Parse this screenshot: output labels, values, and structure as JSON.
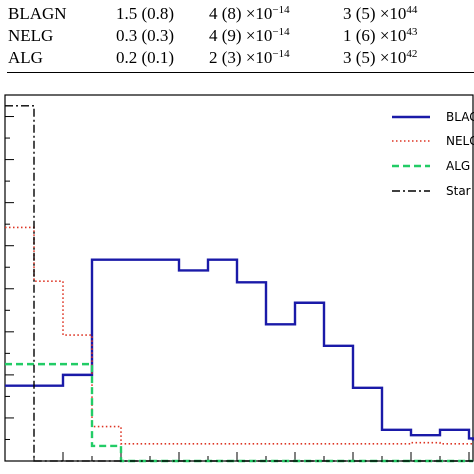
{
  "table": {
    "rows": [
      {
        "name": "BLAGN",
        "col1": "1.5 (0.8)",
        "col2_base": "4 (8) ×10",
        "col2_exp": "−14",
        "col3_base": "3 (5) ×10",
        "col3_exp": "44"
      },
      {
        "name": "NELG",
        "col1": "0.3 (0.3)",
        "col2_base": "4 (9) ×10",
        "col2_exp": "−14",
        "col3_base": "1 (6) ×10",
        "col3_exp": "43"
      },
      {
        "name": "ALG",
        "col1": "0.2 (0.1)",
        "col2_base": "2 (3) ×10",
        "col2_exp": "−14",
        "col3_base": "3 (5) ×10",
        "col3_exp": "42"
      }
    ]
  },
  "chart_data": {
    "type": "step-histogram",
    "ylim": [
      0,
      34
    ],
    "bin_edges": [
      0,
      1,
      2,
      3,
      4,
      5,
      6,
      7,
      8,
      9,
      10,
      11,
      12,
      13,
      14,
      15,
      16,
      17
    ],
    "series": [
      {
        "name": "BLAGN",
        "color": "#1a1aa8",
        "style": "solid",
        "values": [
          7,
          7,
          8,
          18.7,
          18.7,
          18.7,
          17.7,
          18.7,
          16.6,
          12.7,
          14.7,
          10.7,
          6.8,
          2.9,
          2.4,
          2.9,
          2.1,
          1.9
        ]
      },
      {
        "name": "NELG",
        "color": "#dd3322",
        "style": "dotted",
        "values": [
          21.7,
          16.7,
          11.7,
          3.2,
          1.6,
          1.6,
          1.6,
          1.6,
          1.6,
          1.6,
          1.6,
          1.6,
          1.6,
          1.6,
          1.7,
          1.6,
          1.6,
          1.6
        ]
      },
      {
        "name": "ALG",
        "color": "#22cc66",
        "style": "dashed",
        "values": [
          9,
          9,
          9,
          1.4,
          0,
          0,
          0,
          0,
          0,
          0,
          0,
          0,
          0,
          0,
          0,
          0,
          0,
          0
        ]
      },
      {
        "name": "Star",
        "color": "#000000",
        "style": "dashdot",
        "values": [
          33,
          0,
          0,
          0,
          0,
          0,
          0,
          0,
          0,
          0,
          0,
          0,
          0,
          0,
          0,
          0,
          0,
          0
        ]
      }
    ],
    "legend_labels": [
      "BLAGN",
      "NELG",
      "ALG",
      "Star"
    ],
    "legend_position": "top-right"
  }
}
